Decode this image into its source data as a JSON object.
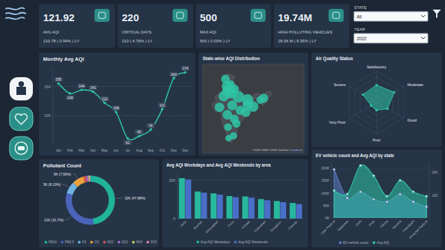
{
  "kpis": [
    {
      "value": "121.92",
      "label": "AVG AQI",
      "ly": "120.78 ( 0.94% ) LY"
    },
    {
      "value": "220",
      "label": "CRITICAL DAYS",
      "ly": "210 ( 4.76% ) LY"
    },
    {
      "value": "500",
      "label": "MAX AQI",
      "ly": "500 ( 0.00% ) LY"
    },
    {
      "value": "19.74M",
      "label": "HIGH POLLUTING VEHICLES",
      "ly": "18.06 M ( 9.35% ) LY"
    }
  ],
  "filters": [
    {
      "label": "STATE",
      "value": "All"
    },
    {
      "label": "YEAR",
      "value": "2022"
    }
  ],
  "chart_data": [
    {
      "type": "line",
      "title": "Monthly Avg AQI",
      "categories": [
        "Jan",
        "Feb",
        "Mar",
        "Apr",
        "May",
        "Jun",
        "Jul",
        "Aug",
        "Sep",
        "Oct",
        "Nov",
        "Dec"
      ],
      "values": [
        155,
        138,
        144,
        141,
        122,
        106,
        61,
        65,
        76,
        111,
        164,
        174
      ],
      "color": "#2ec4a6",
      "marker": "circle",
      "ylim": [
        50,
        180
      ],
      "yticks": [
        100,
        150
      ],
      "grid": true,
      "data_labels": true
    },
    {
      "type": "map",
      "title": "State-wise AQI Distribution",
      "lon": [
        77.2,
        75.5,
        76.0,
        74.0,
        80.9,
        85.3,
        72.0,
        78.0,
        75.7,
        88.0,
        85.3,
        84.5,
        81.8,
        79.0,
        80.0,
        76.0,
        78.6,
        76.3,
        92.9,
        91.3,
        74.8,
        77.2,
        79.0
      ],
      "lat": [
        28.6,
        31.0,
        29.2,
        27.0,
        26.8,
        25.6,
        22.5,
        23.3,
        19.5,
        22.8,
        23.6,
        20.5,
        21.3,
        17.8,
        15.9,
        14.5,
        11.0,
        10.0,
        26.2,
        25.5,
        34.0,
        31.8,
        30.0
      ],
      "size": [
        200,
        140,
        170,
        140,
        180,
        170,
        120,
        130,
        120,
        140,
        130,
        110,
        110,
        100,
        90,
        80,
        70,
        60,
        110,
        80,
        100,
        90,
        110
      ],
      "xlim": [
        64,
        112
      ],
      "ylim": [
        4,
        40
      ],
      "tick_labels": false,
      "color": "#2ec4a6",
      "attribution": "©2025 OSM ©2025 TomTom",
      "link": "Feedback"
    },
    {
      "type": "radar",
      "title": "Air Quality Status",
      "categories": [
        "Satisfactory",
        "Moderate",
        "Good",
        "Poor",
        "Very Poor",
        "Severe"
      ],
      "values": [
        55,
        65,
        40,
        25,
        20,
        50
      ],
      "ylim": [
        0,
        100
      ],
      "yticks": [
        20,
        40,
        60,
        80,
        100
      ],
      "tick_labels": false,
      "color": "#2ec4a6",
      "marker": "circle"
    },
    {
      "type": "donut",
      "title": "Pollutant Count",
      "categories": [
        "PM10",
        "PM2.5",
        "O3",
        "CO",
        "NO2",
        "SO2",
        "NH3",
        "SO3"
      ],
      "values": [
        32000,
        21186,
        5434,
        5046,
        1400,
        900,
        568,
        300
      ],
      "value_labels": [
        "32K (47.88%)",
        "21K (31.7%)",
        "5K (8.13%)",
        "5K (7.55%)",
        null,
        null,
        null,
        null
      ],
      "colors": [
        "#1fb39a",
        "#4b63b8",
        "#6fb3e0",
        "#e9a13b",
        "#d9534f",
        "#9b6fd1",
        "#c7c95a",
        "#e07bb5"
      ],
      "data_labels": true,
      "legend": "bottom"
    },
    {
      "type": "bar",
      "title": "Avg AQI Weekdays and Avg AQI Weekends by area",
      "categories": [
        "Delhi",
        "Mumbai",
        "Ahmedabad",
        "Pune",
        "Kolkata",
        "Hyderabad",
        "Bengaluru",
        "Chennai"
      ],
      "series": [
        {
          "name": "Avg AQI Weekdays",
          "color": "#27b89f",
          "values": [
            212,
            142,
            132,
            118,
            116,
            102,
            92,
            82
          ]
        },
        {
          "name": "Avg AQI Weekends",
          "color": "#4a6fc9",
          "values": [
            205,
            136,
            126,
            112,
            110,
            96,
            86,
            76
          ]
        }
      ],
      "ylim": [
        0,
        240
      ],
      "yticks": [
        0,
        200
      ],
      "grid": true,
      "legend": "bottom"
    },
    {
      "type": "area",
      "title": "EV vehicle count and Avg AQI by state",
      "categories": [
        "Uttar Pradesh",
        "Rajasthan",
        "Delhi",
        "Bihar",
        "Odisha",
        "Haryana",
        "Chandigarh",
        "Himachal Pradesh"
      ],
      "series": [
        {
          "name": "EV vehicle count",
          "color": "#5a7bbd",
          "values": [
            195000,
            80000,
            105000,
            75000,
            65000,
            95000,
            65000,
            45000
          ]
        },
        {
          "name": "Avg AQI",
          "color": "#2ec4a6",
          "axis": "y2",
          "values": [
            120,
            105,
            230,
            185,
            95,
            165,
            115,
            95
          ]
        }
      ],
      "ylim": [
        0,
        220000
      ],
      "yticks": [
        {
          "value": 0,
          "label": "0K"
        },
        {
          "value": 50000,
          "label": "50K"
        },
        {
          "value": 100000,
          "label": "100K"
        },
        {
          "value": 150000,
          "label": "150K"
        },
        {
          "value": 200000,
          "label": "200K"
        }
      ],
      "y2lim": [
        0,
        240
      ],
      "y2ticks": [
        100,
        200
      ],
      "grid": true,
      "legend": "bottom",
      "marker": "circle"
    }
  ]
}
